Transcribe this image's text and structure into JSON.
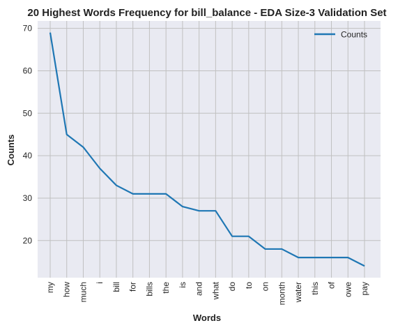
{
  "chart_data": {
    "type": "line",
    "title": "20 Highest Words Frequency for bill_balance - EDA Size-3 Validation Set",
    "xlabel": "Words",
    "ylabel": "Counts",
    "categories": [
      "my",
      "how",
      "much",
      "i",
      "bill",
      "for",
      "bills",
      "the",
      "is",
      "and",
      "what",
      "do",
      "to",
      "on",
      "month",
      "water",
      "this",
      "of",
      "owe",
      "pay"
    ],
    "series": [
      {
        "name": "Counts",
        "values": [
          69,
          45,
          42,
          37,
          33,
          31,
          31,
          31,
          28,
          27,
          27,
          21,
          21,
          18,
          18,
          16,
          16,
          16,
          16,
          14
        ],
        "color": "#1f77b4"
      }
    ],
    "yticks": [
      20,
      30,
      40,
      50,
      60,
      70
    ],
    "ylim": [
      11.25,
      71.75
    ],
    "grid": true,
    "legend_position": "top-right",
    "background": "#e9eaf2",
    "grid_color": "#c0c0c0"
  }
}
